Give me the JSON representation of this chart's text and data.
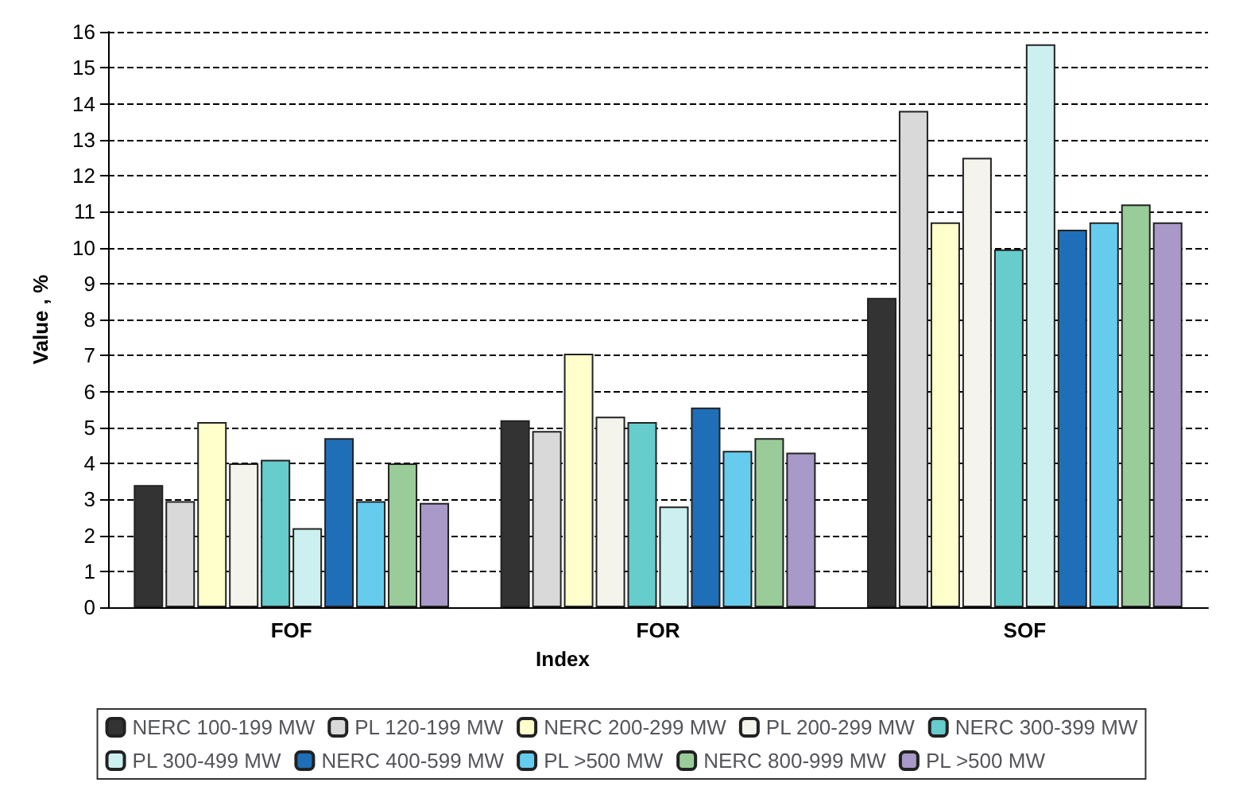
{
  "chart_data": {
    "type": "bar",
    "xlabel": "Index",
    "ylabel": "Value , %",
    "categories": [
      "FOF",
      "FOR",
      "SOF"
    ],
    "series": [
      {
        "name": "NERC 100-199 MW",
        "color": "#333333",
        "values": [
          3.4,
          5.2,
          8.6
        ]
      },
      {
        "name": "PL 120-199 MW",
        "color": "#d9d9d9",
        "values": [
          2.95,
          4.9,
          13.8
        ]
      },
      {
        "name": "NERC 200-299 MW",
        "color": "#ffffcc",
        "values": [
          5.15,
          7.05,
          10.7
        ]
      },
      {
        "name": "PL 200-299 MW",
        "color": "#f4f4ec",
        "values": [
          4.0,
          5.3,
          12.5
        ]
      },
      {
        "name": "NERC 300-399 MW",
        "color": "#66cccc",
        "values": [
          4.1,
          5.15,
          9.95
        ]
      },
      {
        "name": "PL 300-499 MW",
        "color": "#ccf0f0",
        "values": [
          2.2,
          2.8,
          15.65
        ]
      },
      {
        "name": "NERC 400-599 MW",
        "color": "#1f6fb8",
        "values": [
          4.7,
          5.55,
          10.5
        ]
      },
      {
        "name": "PL >500 MW",
        "color": "#66ccee",
        "values": [
          2.95,
          4.35,
          10.7
        ]
      },
      {
        "name": "NERC 800-999 MW",
        "color": "#99cc99",
        "values": [
          4.0,
          4.7,
          11.2
        ]
      },
      {
        "name": "PL >500 MW",
        "color": "#a899c8",
        "values": [
          2.9,
          4.3,
          10.7
        ]
      }
    ],
    "ylim": [
      0,
      16
    ],
    "yticks": [
      0,
      1,
      2,
      3,
      4,
      5,
      6,
      7,
      8,
      9,
      10,
      11,
      12,
      13,
      14,
      15,
      16
    ],
    "grid": "y",
    "legend": "bottom"
  }
}
